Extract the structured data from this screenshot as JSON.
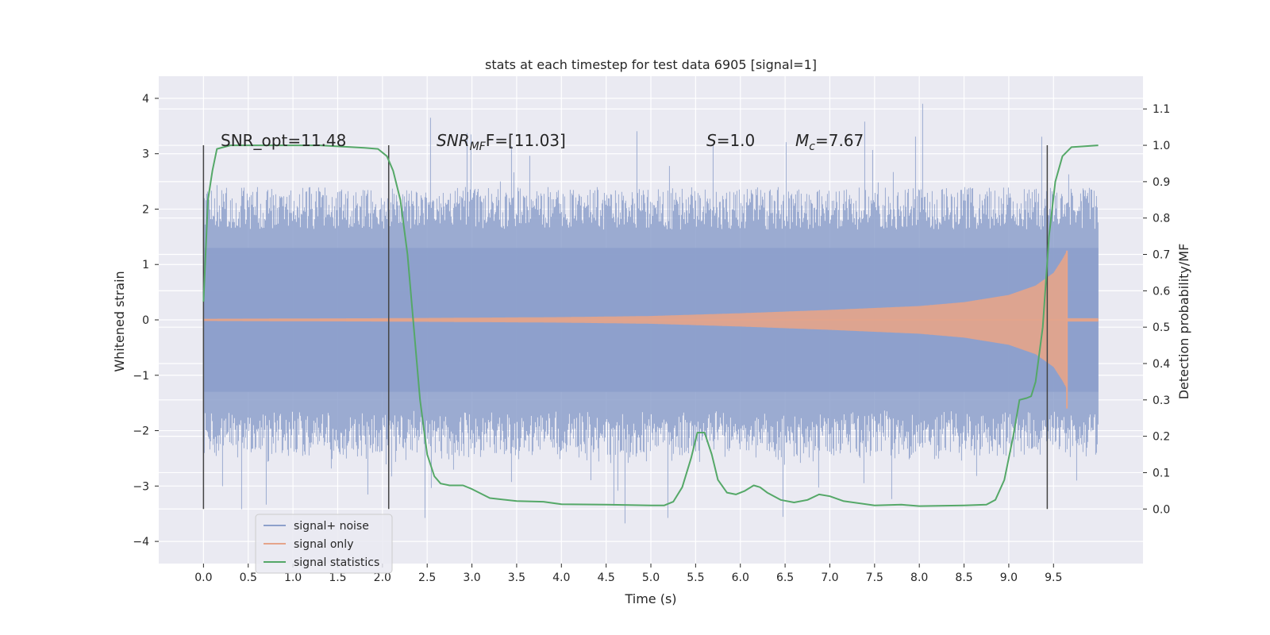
{
  "chart_data": {
    "type": "line",
    "title": "stats at each timestep for test data 6905 [signal=1]",
    "xlabel": "Time (s)",
    "ylabel": "Whitened strain",
    "ylabel_right": "Detection probability/MF",
    "xlim": [
      -0.5,
      10.5
    ],
    "ylim": [
      -4.4,
      4.4
    ],
    "ylim_right": [
      -0.15,
      1.19
    ],
    "x_ticks": [
      0.0,
      0.5,
      1.0,
      1.5,
      2.0,
      2.5,
      3.0,
      3.5,
      4.0,
      4.5,
      5.0,
      5.5,
      6.0,
      6.5,
      7.0,
      7.5,
      8.0,
      8.5,
      9.0,
      9.5
    ],
    "x_tick_labels": [
      "0.0",
      "0.5",
      "1.0",
      "1.5",
      "2.0",
      "2.5",
      "3.0",
      "3.5",
      "4.0",
      "4.5",
      "5.0",
      "5.5",
      "6.0",
      "6.5",
      "7.0",
      "7.5",
      "8.0",
      "8.5",
      "9.0",
      "9.5"
    ],
    "y_ticks": [
      -4,
      -3,
      -2,
      -1,
      0,
      1,
      2,
      3,
      4
    ],
    "y_tick_labels": [
      "−4",
      "−3",
      "−2",
      "−1",
      "0",
      "1",
      "2",
      "3",
      "4"
    ],
    "y_ticks_right": [
      0.0,
      0.1,
      0.2,
      0.3,
      0.4,
      0.5,
      0.6,
      0.7,
      0.8,
      0.9,
      1.0,
      1.1
    ],
    "y_tick_labels_right": [
      "0.0",
      "0.1",
      "0.2",
      "0.3",
      "0.4",
      "0.5",
      "0.6",
      "0.7",
      "0.8",
      "0.9",
      "1.0",
      "1.1"
    ],
    "grid": true,
    "legend_placement": "lower-left",
    "series": [
      {
        "name": "signal+ noise",
        "axis": "left",
        "color": "#8da0cb",
        "kind": "noise-band",
        "x_range": [
          0.0,
          10.0
        ],
        "core_amplitude": 1.3,
        "typical_peak": 2.4,
        "max_peak": 4.05,
        "min_trough": -3.9
      },
      {
        "name": "signal only",
        "axis": "left",
        "color": "#e5a48a",
        "kind": "chirp",
        "x_range": [
          0.0,
          9.65
        ],
        "amplitude_points": [
          [
            0.0,
            0.02
          ],
          [
            2.0,
            0.03
          ],
          [
            4.0,
            0.05
          ],
          [
            5.0,
            0.07
          ],
          [
            6.0,
            0.12
          ],
          [
            7.0,
            0.18
          ],
          [
            8.0,
            0.25
          ],
          [
            8.5,
            0.32
          ],
          [
            9.0,
            0.45
          ],
          [
            9.3,
            0.62
          ],
          [
            9.5,
            0.85
          ],
          [
            9.6,
            1.1
          ],
          [
            9.65,
            1.25
          ]
        ]
      },
      {
        "name": "signal statistics",
        "axis": "right",
        "color": "#55a868",
        "kind": "line",
        "points": [
          [
            0.0,
            0.57
          ],
          [
            0.05,
            0.85
          ],
          [
            0.1,
            0.93
          ],
          [
            0.15,
            0.99
          ],
          [
            0.3,
            1.0
          ],
          [
            1.0,
            1.0
          ],
          [
            1.3,
            1.0
          ],
          [
            1.5,
            0.997
          ],
          [
            1.8,
            0.993
          ],
          [
            1.95,
            0.99
          ],
          [
            2.05,
            0.97
          ],
          [
            2.12,
            0.93
          ],
          [
            2.2,
            0.85
          ],
          [
            2.28,
            0.7
          ],
          [
            2.35,
            0.5
          ],
          [
            2.42,
            0.3
          ],
          [
            2.5,
            0.15
          ],
          [
            2.58,
            0.09
          ],
          [
            2.65,
            0.07
          ],
          [
            2.75,
            0.065
          ],
          [
            2.9,
            0.065
          ],
          [
            3.0,
            0.055
          ],
          [
            3.2,
            0.03
          ],
          [
            3.5,
            0.022
          ],
          [
            3.8,
            0.02
          ],
          [
            4.0,
            0.013
          ],
          [
            4.5,
            0.012
          ],
          [
            5.0,
            0.01
          ],
          [
            5.15,
            0.01
          ],
          [
            5.25,
            0.02
          ],
          [
            5.35,
            0.06
          ],
          [
            5.45,
            0.14
          ],
          [
            5.52,
            0.21
          ],
          [
            5.6,
            0.21
          ],
          [
            5.68,
            0.15
          ],
          [
            5.75,
            0.08
          ],
          [
            5.85,
            0.045
          ],
          [
            5.95,
            0.04
          ],
          [
            6.05,
            0.05
          ],
          [
            6.15,
            0.065
          ],
          [
            6.22,
            0.06
          ],
          [
            6.3,
            0.045
          ],
          [
            6.45,
            0.025
          ],
          [
            6.6,
            0.018
          ],
          [
            6.75,
            0.025
          ],
          [
            6.88,
            0.04
          ],
          [
            7.0,
            0.035
          ],
          [
            7.15,
            0.022
          ],
          [
            7.5,
            0.01
          ],
          [
            7.8,
            0.012
          ],
          [
            8.0,
            0.008
          ],
          [
            8.5,
            0.01
          ],
          [
            8.75,
            0.012
          ],
          [
            8.85,
            0.025
          ],
          [
            8.95,
            0.08
          ],
          [
            9.05,
            0.2
          ],
          [
            9.12,
            0.3
          ],
          [
            9.2,
            0.305
          ],
          [
            9.25,
            0.31
          ],
          [
            9.3,
            0.35
          ],
          [
            9.38,
            0.5
          ],
          [
            9.45,
            0.75
          ],
          [
            9.52,
            0.9
          ],
          [
            9.6,
            0.97
          ],
          [
            9.7,
            0.995
          ],
          [
            10.0,
            1.0
          ]
        ]
      }
    ],
    "vertical_lines": [
      0.0,
      2.07,
      9.43
    ],
    "annotations": [
      {
        "id": "snr-opt",
        "prefix": "SNR_opt=",
        "value": "11.48",
        "x": 0.2
      },
      {
        "id": "snr-mf",
        "prefix": "SNR",
        "sub": "MF",
        "suffix": "F=[11.03]",
        "x": 2.6
      },
      {
        "id": "s",
        "prefix": "S",
        "value": "=1.0",
        "x": 5.6
      },
      {
        "id": "mc",
        "prefix": "M",
        "sub": "c",
        "value": "=7.67",
        "x": 6.6
      }
    ]
  }
}
